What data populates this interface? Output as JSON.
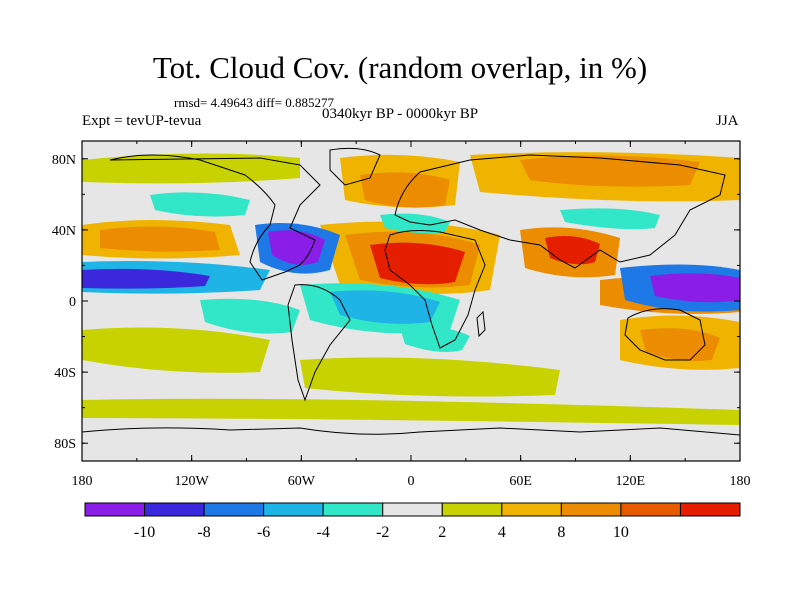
{
  "title": "Tot. Cloud Cov. (random overlap, in %)",
  "stats": "rmsd= 4.49643 diff= 0.885277",
  "experiment": "Expt = tevUP-tevua",
  "period": "0340kyr BP - 0000kyr BP",
  "season": "JJA",
  "axes": {
    "lat_labels": [
      "80N",
      "40N",
      "0",
      "40S",
      "80S"
    ],
    "lat_values": [
      80,
      40,
      0,
      -40,
      -80
    ],
    "lon_labels": [
      "180",
      "120W",
      "60W",
      "0",
      "60E",
      "120E",
      "180"
    ],
    "lon_values": [
      -180,
      -120,
      -60,
      0,
      60,
      120,
      180
    ]
  },
  "colorbar": {
    "labels": [
      "-10",
      "-8",
      "-6",
      "-4",
      "-2",
      "2",
      "4",
      "8",
      "10"
    ],
    "colors": [
      "#8a1ee6",
      "#3b28dc",
      "#1e78e6",
      "#1eb4e6",
      "#32e6c8",
      "#e6e6e6",
      "#c8d200",
      "#f0b400",
      "#ec8c00",
      "#e65a00",
      "#e61e00"
    ]
  },
  "colors": {
    "land_neutral": "#e6e6e6",
    "coastline": "#000000",
    "frame": "#000000"
  }
}
